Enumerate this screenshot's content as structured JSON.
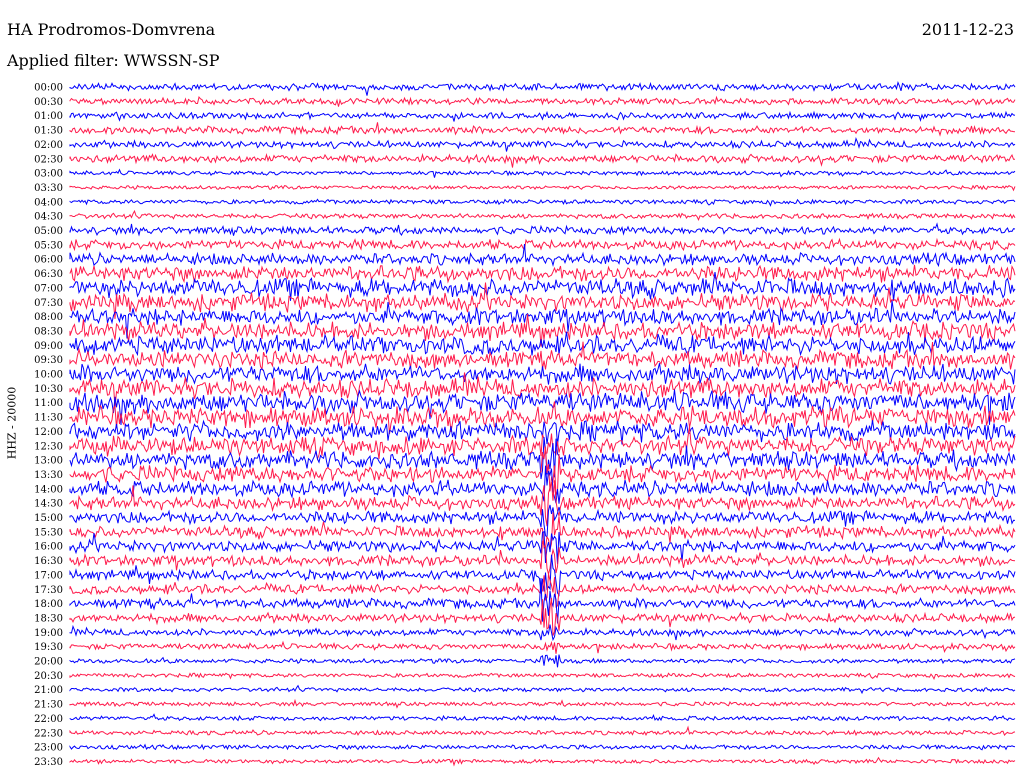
{
  "header": {
    "station": "HA Prodromos-Domvrena",
    "date": "2011-12-23",
    "filter_text": "Applied filter: WWSSN-SP"
  },
  "chart_data": {
    "type": "line",
    "title": "HA Prodromos-Domvrena",
    "ylabel": "HHZ - 20000",
    "colors": [
      "#0000ff",
      "#ff1a4b"
    ],
    "row_labels": [
      "00:00",
      "00:30",
      "01:00",
      "01:30",
      "02:00",
      "02:30",
      "03:00",
      "03:30",
      "04:00",
      "04:30",
      "05:00",
      "05:30",
      "06:00",
      "06:30",
      "07:00",
      "07:30",
      "08:00",
      "08:30",
      "09:00",
      "09:30",
      "10:00",
      "10:30",
      "11:00",
      "11:30",
      "12:00",
      "12:30",
      "13:00",
      "13:30",
      "14:00",
      "14:30",
      "15:00",
      "15:30",
      "16:00",
      "16:30",
      "17:00",
      "17:30",
      "18:00",
      "18:30",
      "19:00",
      "19:30",
      "20:00",
      "20:30",
      "21:00",
      "21:30",
      "22:00",
      "22:30",
      "23:00",
      "23:30"
    ],
    "activity_level": [
      0.25,
      0.22,
      0.22,
      0.28,
      0.25,
      0.3,
      0.1,
      0.08,
      0.12,
      0.15,
      0.3,
      0.4,
      0.5,
      0.7,
      0.85,
      0.8,
      0.75,
      0.8,
      0.85,
      0.8,
      0.85,
      0.9,
      0.95,
      0.95,
      0.9,
      0.85,
      0.8,
      0.75,
      0.7,
      0.6,
      0.55,
      0.5,
      0.5,
      0.45,
      0.4,
      0.38,
      0.4,
      0.35,
      0.25,
      0.2,
      0.12,
      0.1,
      0.1,
      0.1,
      0.12,
      0.12,
      0.12,
      0.1
    ],
    "event": {
      "time_label": "13:30",
      "description": "large signal burst near mid-trace from ~12:00 to ~20:00"
    }
  }
}
